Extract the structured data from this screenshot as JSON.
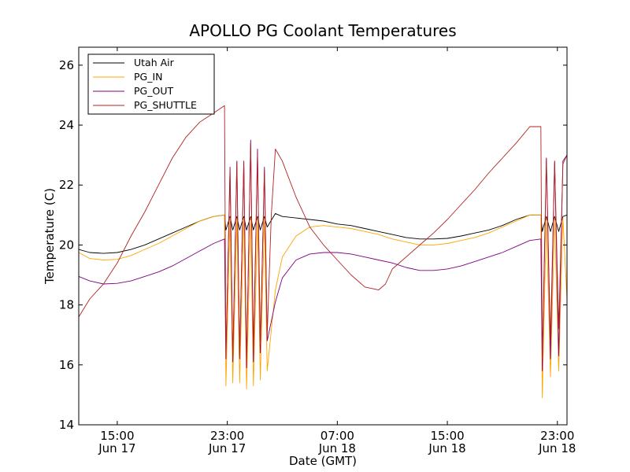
{
  "chart_data": {
    "type": "line",
    "title": "APOLLO PG Coolant Temperatures",
    "xlabel": "Date (GMT)",
    "ylabel": "Temperature (C)",
    "ylim": [
      14,
      26.6
    ],
    "xlim_hours": [
      12.2,
      47.7
    ],
    "yticks": [
      14,
      16,
      18,
      20,
      22,
      24,
      26
    ],
    "xticks": [
      {
        "hour": 15,
        "time": "15:00",
        "date": "Jun 17"
      },
      {
        "hour": 23,
        "time": "23:00",
        "date": "Jun 17"
      },
      {
        "hour": 31,
        "time": "07:00",
        "date": "Jun 18"
      },
      {
        "hour": 39,
        "time": "15:00",
        "date": "Jun 18"
      },
      {
        "hour": 47,
        "time": "23:00",
        "date": "Jun 18"
      }
    ],
    "legend_position": "top-left",
    "series": [
      {
        "name": "Utah Air",
        "color": "#000000",
        "x": [
          12.2,
          13,
          14,
          15,
          16,
          17,
          18,
          19,
          20,
          21,
          22,
          22.8,
          22.9,
          23.2,
          23.4,
          23.7,
          23.9,
          24.2,
          24.4,
          24.7,
          24.9,
          25.2,
          25.4,
          25.7,
          25.9,
          26.5,
          27,
          28,
          29,
          30,
          31,
          32,
          33,
          34,
          35,
          36,
          37,
          38,
          39,
          40,
          41,
          42,
          43,
          44,
          45,
          45.8,
          45.9,
          46.2,
          46.5,
          46.8,
          47.1,
          47.4,
          47.7
        ],
        "y": [
          19.85,
          19.75,
          19.72,
          19.75,
          19.85,
          20.0,
          20.2,
          20.4,
          20.6,
          20.8,
          20.95,
          21.0,
          20.5,
          20.95,
          20.5,
          20.95,
          20.5,
          20.95,
          20.5,
          20.95,
          20.5,
          20.95,
          20.5,
          20.95,
          20.6,
          21.05,
          20.95,
          20.9,
          20.85,
          20.8,
          20.7,
          20.65,
          20.55,
          20.45,
          20.35,
          20.25,
          20.2,
          20.2,
          20.22,
          20.3,
          20.4,
          20.5,
          20.65,
          20.85,
          21.0,
          21.0,
          20.45,
          20.95,
          20.45,
          20.95,
          20.45,
          20.95,
          21.0
        ]
      },
      {
        "name": "PG_IN",
        "color": "#ffa500",
        "x": [
          12.2,
          13,
          14,
          15,
          16,
          17,
          18,
          19,
          20,
          21,
          22,
          22.8,
          22.9,
          23.2,
          23.4,
          23.7,
          23.9,
          24.2,
          24.4,
          24.7,
          24.9,
          25.2,
          25.4,
          25.7,
          25.9,
          26.5,
          27,
          28,
          29,
          30,
          31,
          32,
          33,
          34,
          35,
          36,
          37,
          38,
          39,
          40,
          41,
          42,
          43,
          44,
          45,
          45.8,
          45.9,
          46.2,
          46.5,
          46.8,
          47.1,
          47.4,
          47.7
        ],
        "y": [
          19.75,
          19.55,
          19.5,
          19.52,
          19.65,
          19.85,
          20.05,
          20.3,
          20.55,
          20.8,
          20.95,
          21.0,
          15.3,
          20.9,
          15.4,
          20.9,
          15.4,
          20.9,
          15.2,
          20.9,
          15.3,
          20.9,
          15.5,
          20.9,
          15.8,
          18.5,
          19.6,
          20.3,
          20.6,
          20.65,
          20.6,
          20.55,
          20.45,
          20.35,
          20.2,
          20.1,
          20.0,
          20.0,
          20.05,
          20.15,
          20.25,
          20.4,
          20.6,
          20.8,
          21.0,
          21.0,
          14.9,
          20.9,
          15.6,
          20.9,
          15.8,
          20.9,
          18.2
        ]
      },
      {
        "name": "PG_OUT",
        "color": "#800080",
        "x": [
          12.2,
          13,
          14,
          15,
          16,
          17,
          18,
          19,
          20,
          21,
          22,
          22.8,
          22.9,
          23.2,
          23.4,
          23.7,
          23.9,
          24.2,
          24.4,
          24.7,
          24.9,
          25.2,
          25.4,
          25.7,
          25.9,
          26.5,
          27,
          28,
          29,
          30,
          31,
          32,
          33,
          34,
          35,
          36,
          37,
          38,
          39,
          40,
          41,
          42,
          43,
          44,
          45,
          45.8,
          45.9,
          46.2,
          46.5,
          46.8,
          47.1,
          47.4,
          47.7
        ],
        "y": [
          18.95,
          18.8,
          18.7,
          18.72,
          18.8,
          18.95,
          19.1,
          19.3,
          19.55,
          19.8,
          20.05,
          20.2,
          16.2,
          22.6,
          16.1,
          22.8,
          16.2,
          22.8,
          15.9,
          23.5,
          16.1,
          23.2,
          16.4,
          22.6,
          16.8,
          18.1,
          18.9,
          19.5,
          19.7,
          19.75,
          19.75,
          19.7,
          19.6,
          19.5,
          19.4,
          19.25,
          19.15,
          19.15,
          19.2,
          19.3,
          19.45,
          19.6,
          19.75,
          19.95,
          20.15,
          20.2,
          15.8,
          22.9,
          16.2,
          22.8,
          16.3,
          22.8,
          23.0
        ]
      },
      {
        "name": "PG_SHUTTLE",
        "color": "#b22222",
        "x": [
          12.2,
          13,
          14,
          15,
          16,
          17,
          18,
          19,
          20,
          21,
          22,
          22.8,
          22.9,
          23.2,
          23.4,
          23.7,
          23.9,
          24.2,
          24.4,
          24.7,
          24.9,
          25.2,
          25.4,
          25.7,
          25.9,
          26.2,
          26.5,
          27,
          28,
          29,
          30,
          31,
          32,
          33,
          34,
          34.5,
          35,
          36,
          37,
          38,
          39,
          40,
          41,
          42,
          43,
          44,
          45,
          45.8,
          45.9,
          46.2,
          46.5,
          46.8,
          47.1,
          47.4,
          47.7
        ],
        "y": [
          17.6,
          18.2,
          18.7,
          19.4,
          20.3,
          21.1,
          22.0,
          22.9,
          23.6,
          24.1,
          24.4,
          24.65,
          16.3,
          22.5,
          16.2,
          22.8,
          16.3,
          22.8,
          16.1,
          23.4,
          16.5,
          23.0,
          16.7,
          22.5,
          17.0,
          21.0,
          23.2,
          22.8,
          21.6,
          20.6,
          20.0,
          19.5,
          19.0,
          18.6,
          18.5,
          18.7,
          19.2,
          19.6,
          20.0,
          20.4,
          20.85,
          21.35,
          21.85,
          22.4,
          22.9,
          23.4,
          23.95,
          23.95,
          16.2,
          22.9,
          16.8,
          22.8,
          17.2,
          22.7,
          23.0
        ]
      }
    ]
  }
}
